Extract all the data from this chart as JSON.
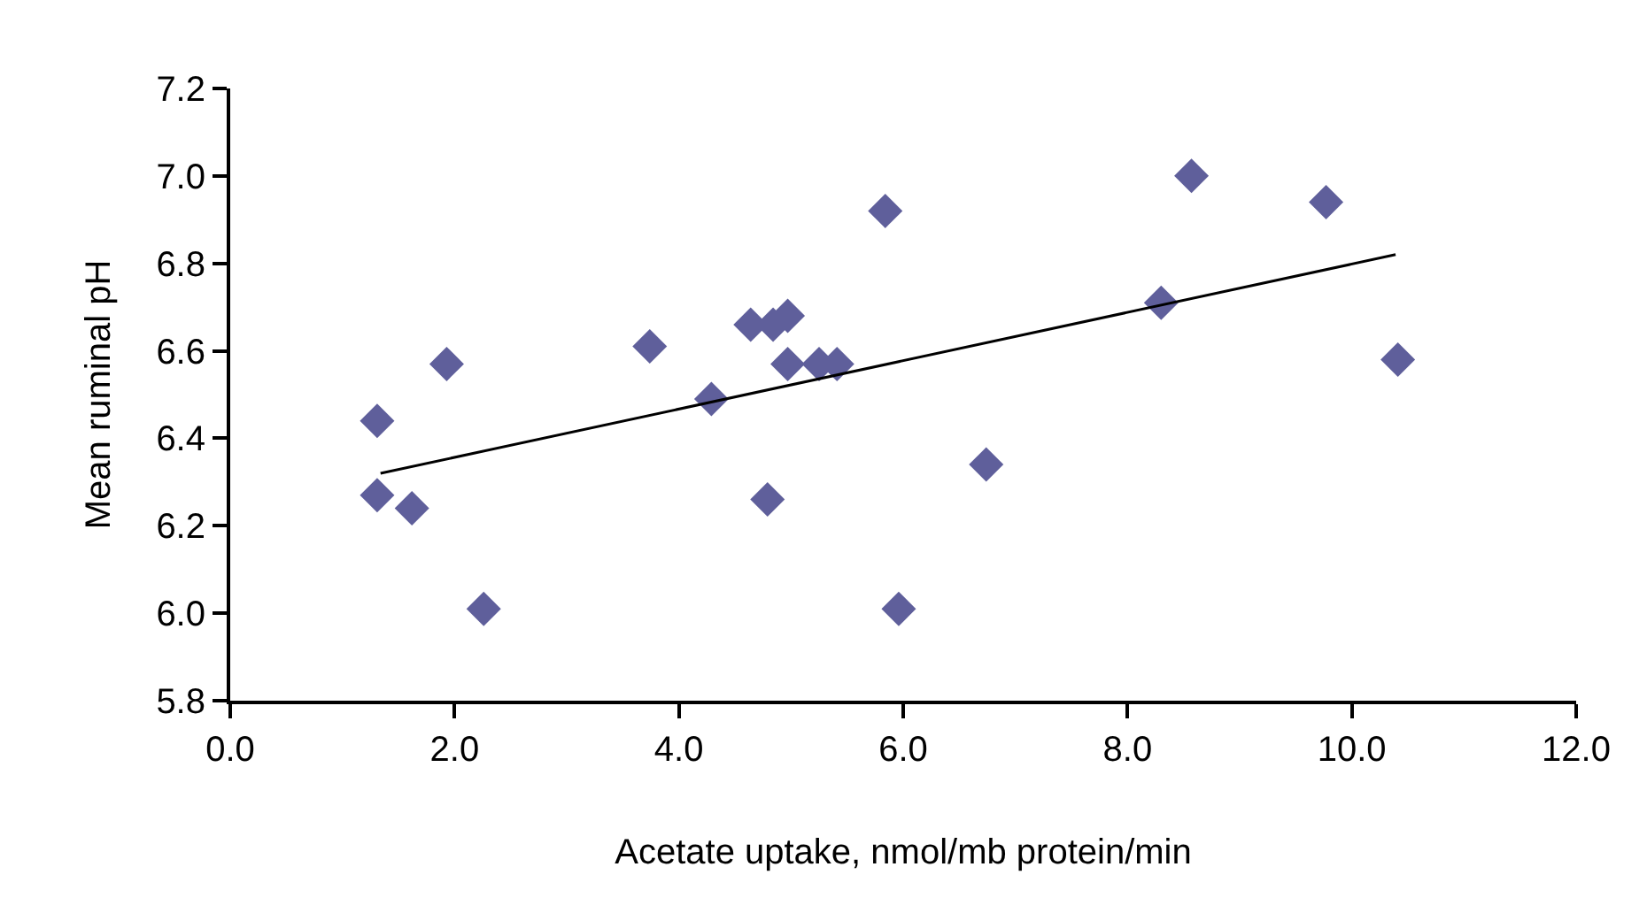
{
  "chart_data": {
    "type": "scatter",
    "xlabel": "Acetate uptake, nmol/mb protein/min",
    "ylabel": "Mean ruminal pH",
    "grid": false,
    "legend": false,
    "xlim": [
      0,
      12
    ],
    "xticks": [
      {
        "value": 0,
        "label": "0.0"
      },
      {
        "value": 2,
        "label": "2.0"
      },
      {
        "value": 4,
        "label": "4.0"
      },
      {
        "value": 6,
        "label": "6.0"
      },
      {
        "value": 8,
        "label": "8.0"
      },
      {
        "value": 10,
        "label": "10.0"
      },
      {
        "value": 12,
        "label": "12.0"
      }
    ],
    "ylim": [
      5.8,
      7.2
    ],
    "yticks": [
      5.8,
      {
        "value": 6,
        "label": "6.0"
      },
      6.2,
      6.4,
      6.6,
      6.8,
      {
        "value": 7,
        "label": "7.0"
      },
      7.2
    ],
    "series": [
      {
        "type": "scatter",
        "marker": "diamond",
        "color": "#5f5f9b",
        "x": [
          1.31,
          1.31,
          1.62,
          1.93,
          2.26,
          3.74,
          4.29,
          4.64,
          4.79,
          4.84,
          4.97,
          4.97,
          5.25,
          5.41,
          5.84,
          5.96,
          6.74,
          8.3,
          8.57,
          9.77,
          10.41
        ],
        "values": [
          6.44,
          6.27,
          6.24,
          6.57,
          6.01,
          6.61,
          6.49,
          6.66,
          6.26,
          6.66,
          6.68,
          6.57,
          6.57,
          6.57,
          6.92,
          6.01,
          6.34,
          6.71,
          7.0,
          6.94,
          6.58
        ]
      },
      {
        "type": "line",
        "color": "#000000",
        "x": [
          1.34,
          10.39
        ],
        "values": [
          6.32,
          6.82
        ]
      }
    ]
  }
}
